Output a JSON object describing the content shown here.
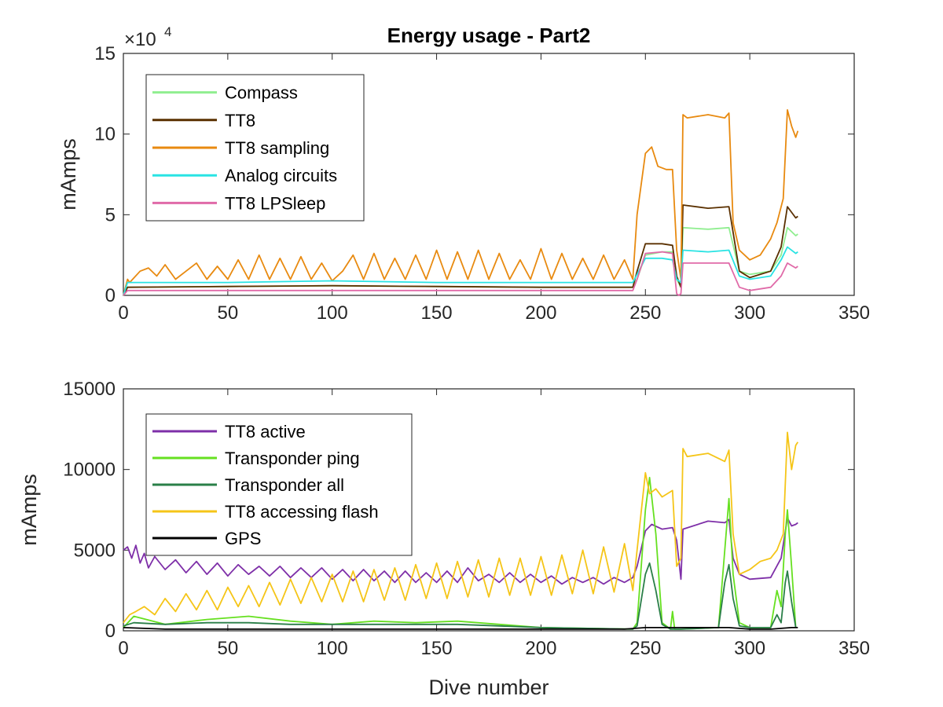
{
  "figure": {
    "title": "Energy usage - Part2",
    "xlabel": "Dive number"
  },
  "chart_data": [
    {
      "type": "line",
      "title": "Energy usage - Part2",
      "xlabel": "",
      "ylabel": "mAmps",
      "xlim": [
        0,
        350
      ],
      "ylim": [
        0,
        15
      ],
      "xticks": [
        "0",
        "50",
        "100",
        "150",
        "200",
        "250",
        "300",
        "350"
      ],
      "yticks": [
        "0",
        "5",
        "10",
        "15"
      ],
      "y_exponent_label": "×10",
      "y_exponent_power": "4",
      "grid": false,
      "legend_position": "top-left",
      "series": [
        {
          "name": "Compass",
          "color": "#90ee90",
          "x": [
            0,
            2,
            50,
            100,
            150,
            200,
            244,
            246,
            250,
            258,
            263,
            265,
            267,
            268,
            280,
            290,
            295,
            300,
            310,
            315,
            318,
            322,
            323
          ],
          "y": [
            0,
            0.5,
            0.55,
            0.6,
            0.55,
            0.5,
            0.5,
            1.0,
            2.5,
            2.7,
            2.7,
            1.0,
            0.5,
            4.2,
            4.1,
            4.2,
            1.5,
            1.3,
            1.5,
            2.5,
            4.2,
            3.7,
            3.8
          ]
        },
        {
          "name": "TT8",
          "color": "#5a3000",
          "x": [
            0,
            2,
            50,
            100,
            150,
            200,
            244,
            246,
            250,
            258,
            263,
            265,
            267,
            268,
            280,
            290,
            295,
            300,
            310,
            315,
            318,
            322,
            323
          ],
          "y": [
            0,
            0.5,
            0.55,
            0.6,
            0.55,
            0.5,
            0.5,
            1.5,
            3.2,
            3.2,
            3.1,
            1.2,
            0.5,
            5.6,
            5.4,
            5.5,
            1.5,
            1.1,
            1.5,
            3.0,
            5.5,
            4.8,
            4.9
          ]
        },
        {
          "name": "TT8 sampling",
          "color": "#e88a10",
          "x": [
            0,
            2,
            3,
            8,
            12,
            16,
            20,
            25,
            30,
            35,
            40,
            45,
            50,
            55,
            60,
            65,
            70,
            75,
            80,
            85,
            90,
            95,
            100,
            105,
            110,
            115,
            120,
            125,
            130,
            135,
            140,
            145,
            150,
            155,
            160,
            165,
            170,
            175,
            180,
            185,
            190,
            195,
            200,
            205,
            210,
            215,
            220,
            225,
            230,
            235,
            240,
            244,
            246,
            250,
            253,
            256,
            260,
            263,
            265,
            267,
            268,
            270,
            280,
            288,
            290,
            292,
            295,
            300,
            305,
            310,
            313,
            316,
            318,
            320,
            322,
            323
          ],
          "y": [
            0,
            1.0,
            0.8,
            1.5,
            1.7,
            1.2,
            1.9,
            1.0,
            1.5,
            2.0,
            1.0,
            1.8,
            1.0,
            2.2,
            1.0,
            2.5,
            1.0,
            2.3,
            1.0,
            2.4,
            1.0,
            2.0,
            0.9,
            1.5,
            2.5,
            1.0,
            2.6,
            1.0,
            2.3,
            1.0,
            2.5,
            1.0,
            2.8,
            1.0,
            2.7,
            1.0,
            2.8,
            1.0,
            2.6,
            1.0,
            2.2,
            1.0,
            2.9,
            1.0,
            2.6,
            1.0,
            2.3,
            1.0,
            2.5,
            1.0,
            2.2,
            1.0,
            5.0,
            8.8,
            9.2,
            8.0,
            7.8,
            7.8,
            2.8,
            1.0,
            11.2,
            11.0,
            11.2,
            11.0,
            11.3,
            4.5,
            2.8,
            2.2,
            2.5,
            3.5,
            4.5,
            6.0,
            11.5,
            10.5,
            9.8,
            10.2
          ]
        },
        {
          "name": "Analog circuits",
          "color": "#29e3e3",
          "x": [
            0,
            2,
            50,
            100,
            150,
            200,
            244,
            246,
            250,
            258,
            263,
            265,
            267,
            268,
            280,
            290,
            295,
            300,
            310,
            315,
            318,
            322,
            323
          ],
          "y": [
            0,
            0.8,
            0.8,
            0.9,
            0.8,
            0.8,
            0.8,
            1.3,
            2.3,
            2.3,
            2.2,
            1.0,
            0.8,
            2.8,
            2.7,
            2.8,
            1.2,
            1.0,
            1.2,
            2.2,
            3.0,
            2.6,
            2.7
          ]
        },
        {
          "name": "TT8 LPSleep",
          "color": "#e06aa8",
          "x": [
            0,
            2,
            50,
            100,
            150,
            200,
            244,
            246,
            250,
            258,
            263,
            265,
            266,
            267,
            268,
            280,
            290,
            295,
            300,
            310,
            315,
            318,
            322,
            323
          ],
          "y": [
            0,
            0.3,
            0.3,
            0.3,
            0.3,
            0.3,
            0.3,
            1.0,
            2.6,
            2.7,
            2.6,
            0.1,
            0.0,
            0.1,
            2.0,
            2.0,
            2.0,
            0.5,
            0.3,
            0.5,
            1.2,
            2.0,
            1.7,
            1.8
          ]
        }
      ]
    },
    {
      "type": "line",
      "title": "",
      "xlabel": "Dive number",
      "ylabel": "mAmps",
      "xlim": [
        0,
        350
      ],
      "ylim": [
        0,
        15000
      ],
      "xticks": [
        "0",
        "50",
        "100",
        "150",
        "200",
        "250",
        "300",
        "350"
      ],
      "yticks": [
        "0",
        "5000",
        "10000",
        "15000"
      ],
      "grid": false,
      "legend_position": "top-left",
      "series": [
        {
          "name": "TT8 active",
          "color": "#7e2fa8",
          "x": [
            0,
            2,
            4,
            6,
            8,
            10,
            12,
            15,
            20,
            25,
            30,
            35,
            40,
            45,
            50,
            55,
            60,
            65,
            70,
            75,
            80,
            85,
            90,
            95,
            100,
            105,
            110,
            115,
            120,
            125,
            130,
            135,
            140,
            145,
            150,
            155,
            160,
            165,
            170,
            175,
            180,
            185,
            190,
            195,
            200,
            205,
            210,
            215,
            220,
            225,
            230,
            235,
            240,
            244,
            246,
            250,
            253,
            258,
            263,
            265,
            267,
            268,
            280,
            288,
            290,
            292,
            295,
            300,
            310,
            315,
            318,
            320,
            322,
            323
          ],
          "y": [
            5000,
            5200,
            4500,
            5300,
            4200,
            4800,
            3900,
            4600,
            3800,
            4400,
            3600,
            4300,
            3500,
            4200,
            3400,
            4100,
            3500,
            4000,
            3400,
            4000,
            3300,
            3900,
            3300,
            3900,
            3200,
            3800,
            3100,
            3800,
            3100,
            3700,
            3000,
            3700,
            3000,
            3600,
            3000,
            3700,
            3000,
            3900,
            3100,
            3500,
            3000,
            3600,
            3000,
            3500,
            3000,
            3400,
            2900,
            3300,
            3000,
            3300,
            2900,
            3300,
            3000,
            3300,
            4000,
            6200,
            6600,
            6300,
            6400,
            5600,
            3200,
            6300,
            6800,
            6700,
            6900,
            4500,
            3500,
            3200,
            3300,
            4500,
            7000,
            6500,
            6600,
            6700
          ]
        },
        {
          "name": "Transponder ping",
          "color": "#66e020",
          "x": [
            0,
            5,
            20,
            40,
            60,
            80,
            100,
            120,
            140,
            160,
            180,
            200,
            244,
            246,
            250,
            252,
            255,
            258,
            262,
            263,
            264,
            267,
            285,
            288,
            290,
            292,
            295,
            300,
            310,
            313,
            315,
            317,
            318,
            320,
            322
          ],
          "y": [
            200,
            900,
            400,
            700,
            900,
            600,
            400,
            600,
            500,
            600,
            400,
            200,
            100,
            500,
            7500,
            9500,
            6000,
            500,
            100,
            1200,
            100,
            100,
            200,
            5000,
            8200,
            3500,
            500,
            200,
            200,
            2500,
            1500,
            6000,
            7500,
            4000,
            200
          ]
        },
        {
          "name": "Transponder all",
          "color": "#2a7f48",
          "x": [
            0,
            5,
            20,
            40,
            60,
            80,
            100,
            120,
            140,
            160,
            180,
            200,
            244,
            246,
            250,
            252,
            255,
            258,
            262,
            267,
            285,
            288,
            290,
            292,
            295,
            300,
            310,
            313,
            315,
            317,
            318,
            320,
            322
          ],
          "y": [
            300,
            500,
            400,
            500,
            500,
            400,
            400,
            400,
            400,
            400,
            300,
            200,
            100,
            300,
            3500,
            4200,
            2500,
            400,
            100,
            100,
            200,
            3000,
            4100,
            2000,
            300,
            200,
            200,
            1000,
            500,
            3000,
            3700,
            1800,
            200
          ]
        },
        {
          "name": "TT8 accessing flash",
          "color": "#f5c518",
          "x": [
            0,
            3,
            6,
            10,
            15,
            20,
            25,
            30,
            35,
            40,
            45,
            50,
            55,
            60,
            65,
            70,
            75,
            80,
            85,
            90,
            95,
            100,
            105,
            110,
            115,
            120,
            125,
            130,
            135,
            140,
            145,
            150,
            155,
            160,
            165,
            170,
            175,
            180,
            185,
            190,
            195,
            200,
            205,
            210,
            215,
            220,
            225,
            230,
            235,
            240,
            244,
            246,
            250,
            252,
            255,
            258,
            263,
            265,
            267,
            268,
            270,
            280,
            288,
            290,
            292,
            295,
            300,
            305,
            310,
            313,
            316,
            318,
            320,
            322,
            323
          ],
          "y": [
            500,
            1000,
            1200,
            1500,
            1000,
            2000,
            1200,
            2300,
            1300,
            2500,
            1300,
            2700,
            1500,
            2800,
            1500,
            3000,
            1600,
            3200,
            1700,
            3300,
            1800,
            3500,
            1800,
            3700,
            1800,
            3800,
            1900,
            3900,
            1900,
            4100,
            2000,
            4200,
            2000,
            4300,
            2100,
            4400,
            2100,
            4500,
            2200,
            4500,
            2200,
            4600,
            2200,
            4700,
            2300,
            5000,
            2300,
            5200,
            2400,
            5400,
            2500,
            5000,
            9800,
            8500,
            8800,
            8300,
            8700,
            4000,
            4500,
            11300,
            10800,
            11000,
            10500,
            11200,
            6000,
            3500,
            3800,
            4300,
            4500,
            5000,
            6000,
            12300,
            10000,
            11500,
            11700
          ]
        },
        {
          "name": "GPS",
          "color": "#000000",
          "x": [
            0,
            10,
            20,
            40,
            60,
            80,
            100,
            120,
            140,
            160,
            180,
            200,
            220,
            240,
            250,
            260,
            270,
            280,
            290,
            300,
            310,
            320,
            323
          ],
          "y": [
            200,
            150,
            100,
            100,
            100,
            100,
            100,
            100,
            100,
            100,
            100,
            100,
            100,
            100,
            200,
            200,
            200,
            200,
            200,
            100,
            100,
            200,
            200
          ]
        }
      ]
    }
  ]
}
